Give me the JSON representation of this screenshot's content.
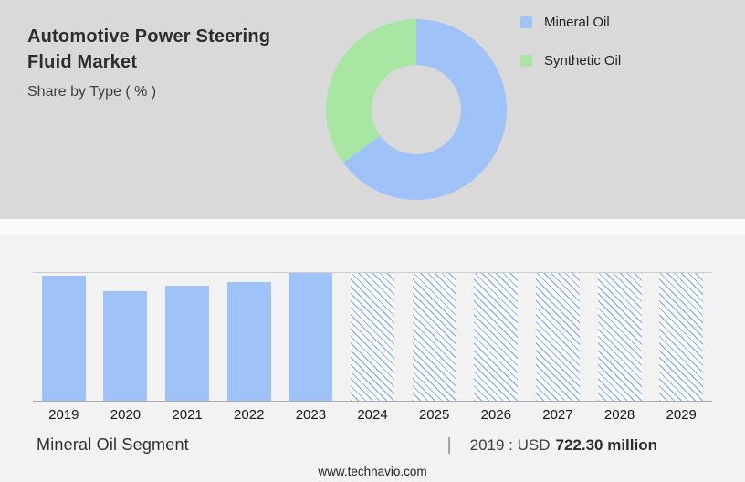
{
  "header": {
    "title_line1": "Automotive Power Steering",
    "title_line2": "Fluid Market",
    "subtitle": "Share by Type ( % )"
  },
  "colors": {
    "mineral_blue": "#9fc3f8",
    "synthetic_green": "#a7e6a3",
    "hatch_blue": "#8fb4f3",
    "top_background": "#d9d9d9",
    "bottom_background": "#f2f2f2"
  },
  "legend": {
    "items": [
      {
        "label": "Mineral Oil",
        "color": "#9fc3f8"
      },
      {
        "label": "Synthetic Oil",
        "color": "#a7e6a3"
      }
    ]
  },
  "caption": {
    "segment_label": "Mineral Oil Segment",
    "separator": "|",
    "stat_prefix": "2019 : USD",
    "stat_value": "722.30 million"
  },
  "footer": {
    "website": "www.technavio.com"
  },
  "chart_data": [
    {
      "type": "pie",
      "donut": true,
      "title": "Share by Type ( % )",
      "labels": [
        "Mineral Oil",
        "Synthetic Oil"
      ],
      "values": [
        65,
        35
      ],
      "colors": [
        "#9fc3f8",
        "#a7e6a3"
      ],
      "legend_position": "right"
    },
    {
      "type": "bar",
      "title": "Mineral Oil Segment market size by year",
      "categories": [
        "2019",
        "2020",
        "2021",
        "2022",
        "2023",
        "2024",
        "2025",
        "2026",
        "2027",
        "2028",
        "2029"
      ],
      "bars": [
        {
          "year": "2019",
          "height_pct": 98,
          "style": "solid",
          "forecast": false
        },
        {
          "year": "2020",
          "height_pct": 86,
          "style": "solid",
          "forecast": false
        },
        {
          "year": "2021",
          "height_pct": 90,
          "style": "solid",
          "forecast": false
        },
        {
          "year": "2022",
          "height_pct": 93,
          "style": "solid",
          "forecast": false
        },
        {
          "year": "2023",
          "height_pct": 100,
          "style": "solid",
          "forecast": false
        },
        {
          "year": "2024",
          "height_pct": 100,
          "style": "hatched",
          "forecast": true
        },
        {
          "year": "2025",
          "height_pct": 100,
          "style": "hatched",
          "forecast": true
        },
        {
          "year": "2026",
          "height_pct": 100,
          "style": "hatched",
          "forecast": true
        },
        {
          "year": "2027",
          "height_pct": 100,
          "style": "hatched",
          "forecast": true
        },
        {
          "year": "2028",
          "height_pct": 100,
          "style": "hatched",
          "forecast": true
        },
        {
          "year": "2029",
          "height_pct": 100,
          "style": "hatched",
          "forecast": true
        }
      ],
      "annotations": [
        "2019 : USD 722.30 million"
      ],
      "xlabel": "",
      "ylabel": "",
      "grid": "top rule and baseline only"
    }
  ]
}
